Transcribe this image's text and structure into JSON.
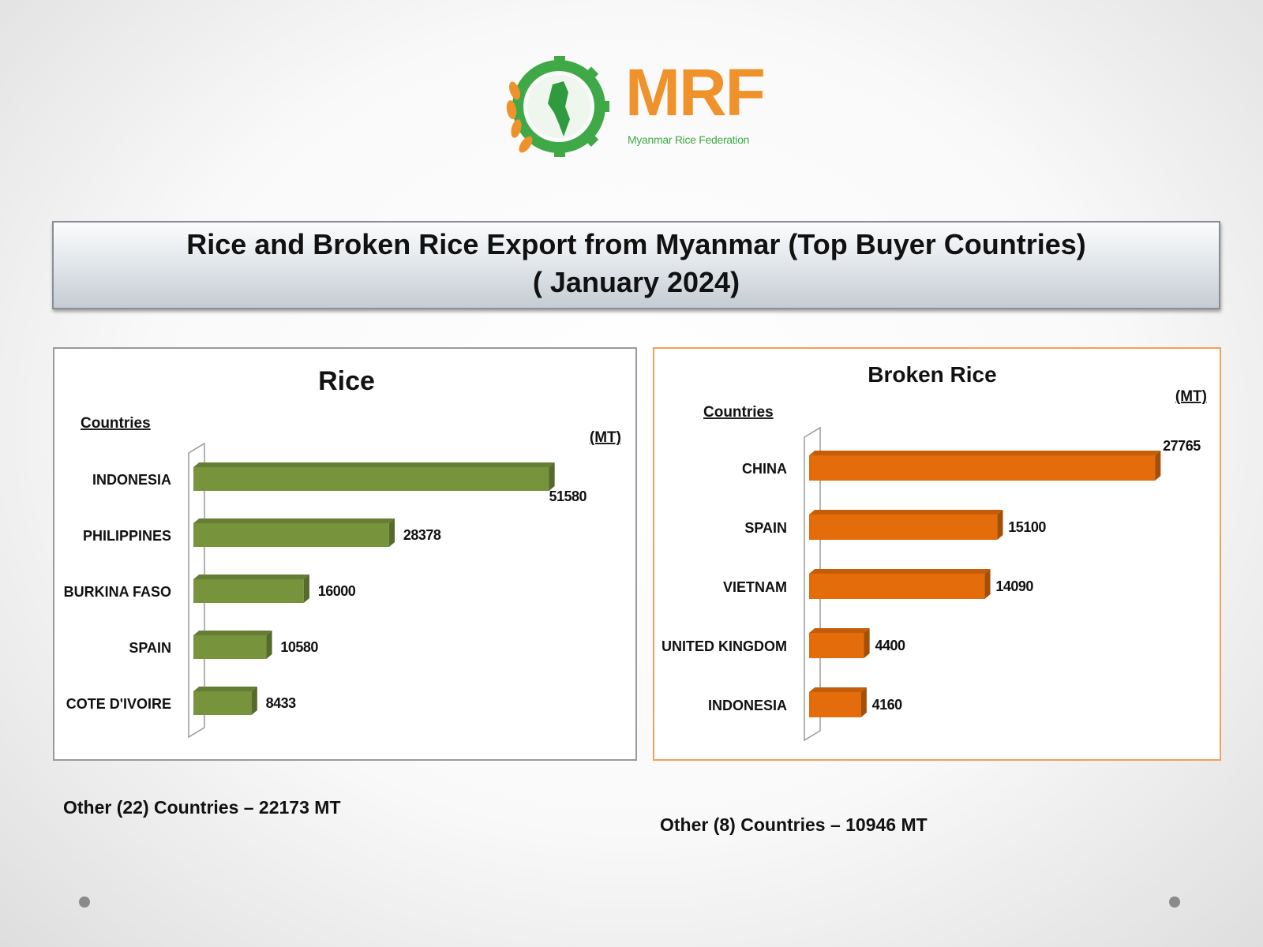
{
  "logo": {
    "brand": "MRF",
    "subtitle": "Myanmar Rice Federation",
    "brand_color": "#f0922b",
    "green": "#3fa847"
  },
  "title": {
    "line1": "Rice and Broken Rice Export from Myanmar (Top Buyer Countries)",
    "line2": "( January 2024)"
  },
  "chart_data": [
    {
      "type": "bar",
      "orientation": "horizontal",
      "title": "Rice",
      "category_header": "Countries",
      "unit": "(MT)",
      "categories": [
        "INDONESIA",
        "PHILIPPINES",
        "BURKINA FASO",
        "SPAIN",
        "COTE D'IVOIRE"
      ],
      "values": [
        51580,
        28378,
        16000,
        10580,
        8433
      ],
      "xlim": [
        0,
        60000
      ],
      "color": "#77933c",
      "grid": false
    },
    {
      "type": "bar",
      "orientation": "horizontal",
      "title": "Broken Rice",
      "category_header": "Countries",
      "unit": "(MT)",
      "categories": [
        "CHINA",
        "SPAIN",
        "VIETNAM",
        "UNITED KINGDOM",
        "INDONESIA"
      ],
      "values": [
        27765,
        15100,
        14090,
        4400,
        4160
      ],
      "xlim": [
        0,
        32000
      ],
      "color": "#e46c0a",
      "grid": false
    }
  ],
  "notes": {
    "rice_other": "Other (22) Countries –  22173 MT",
    "broken_other": "Other (8) Countries –  10946 MT"
  }
}
